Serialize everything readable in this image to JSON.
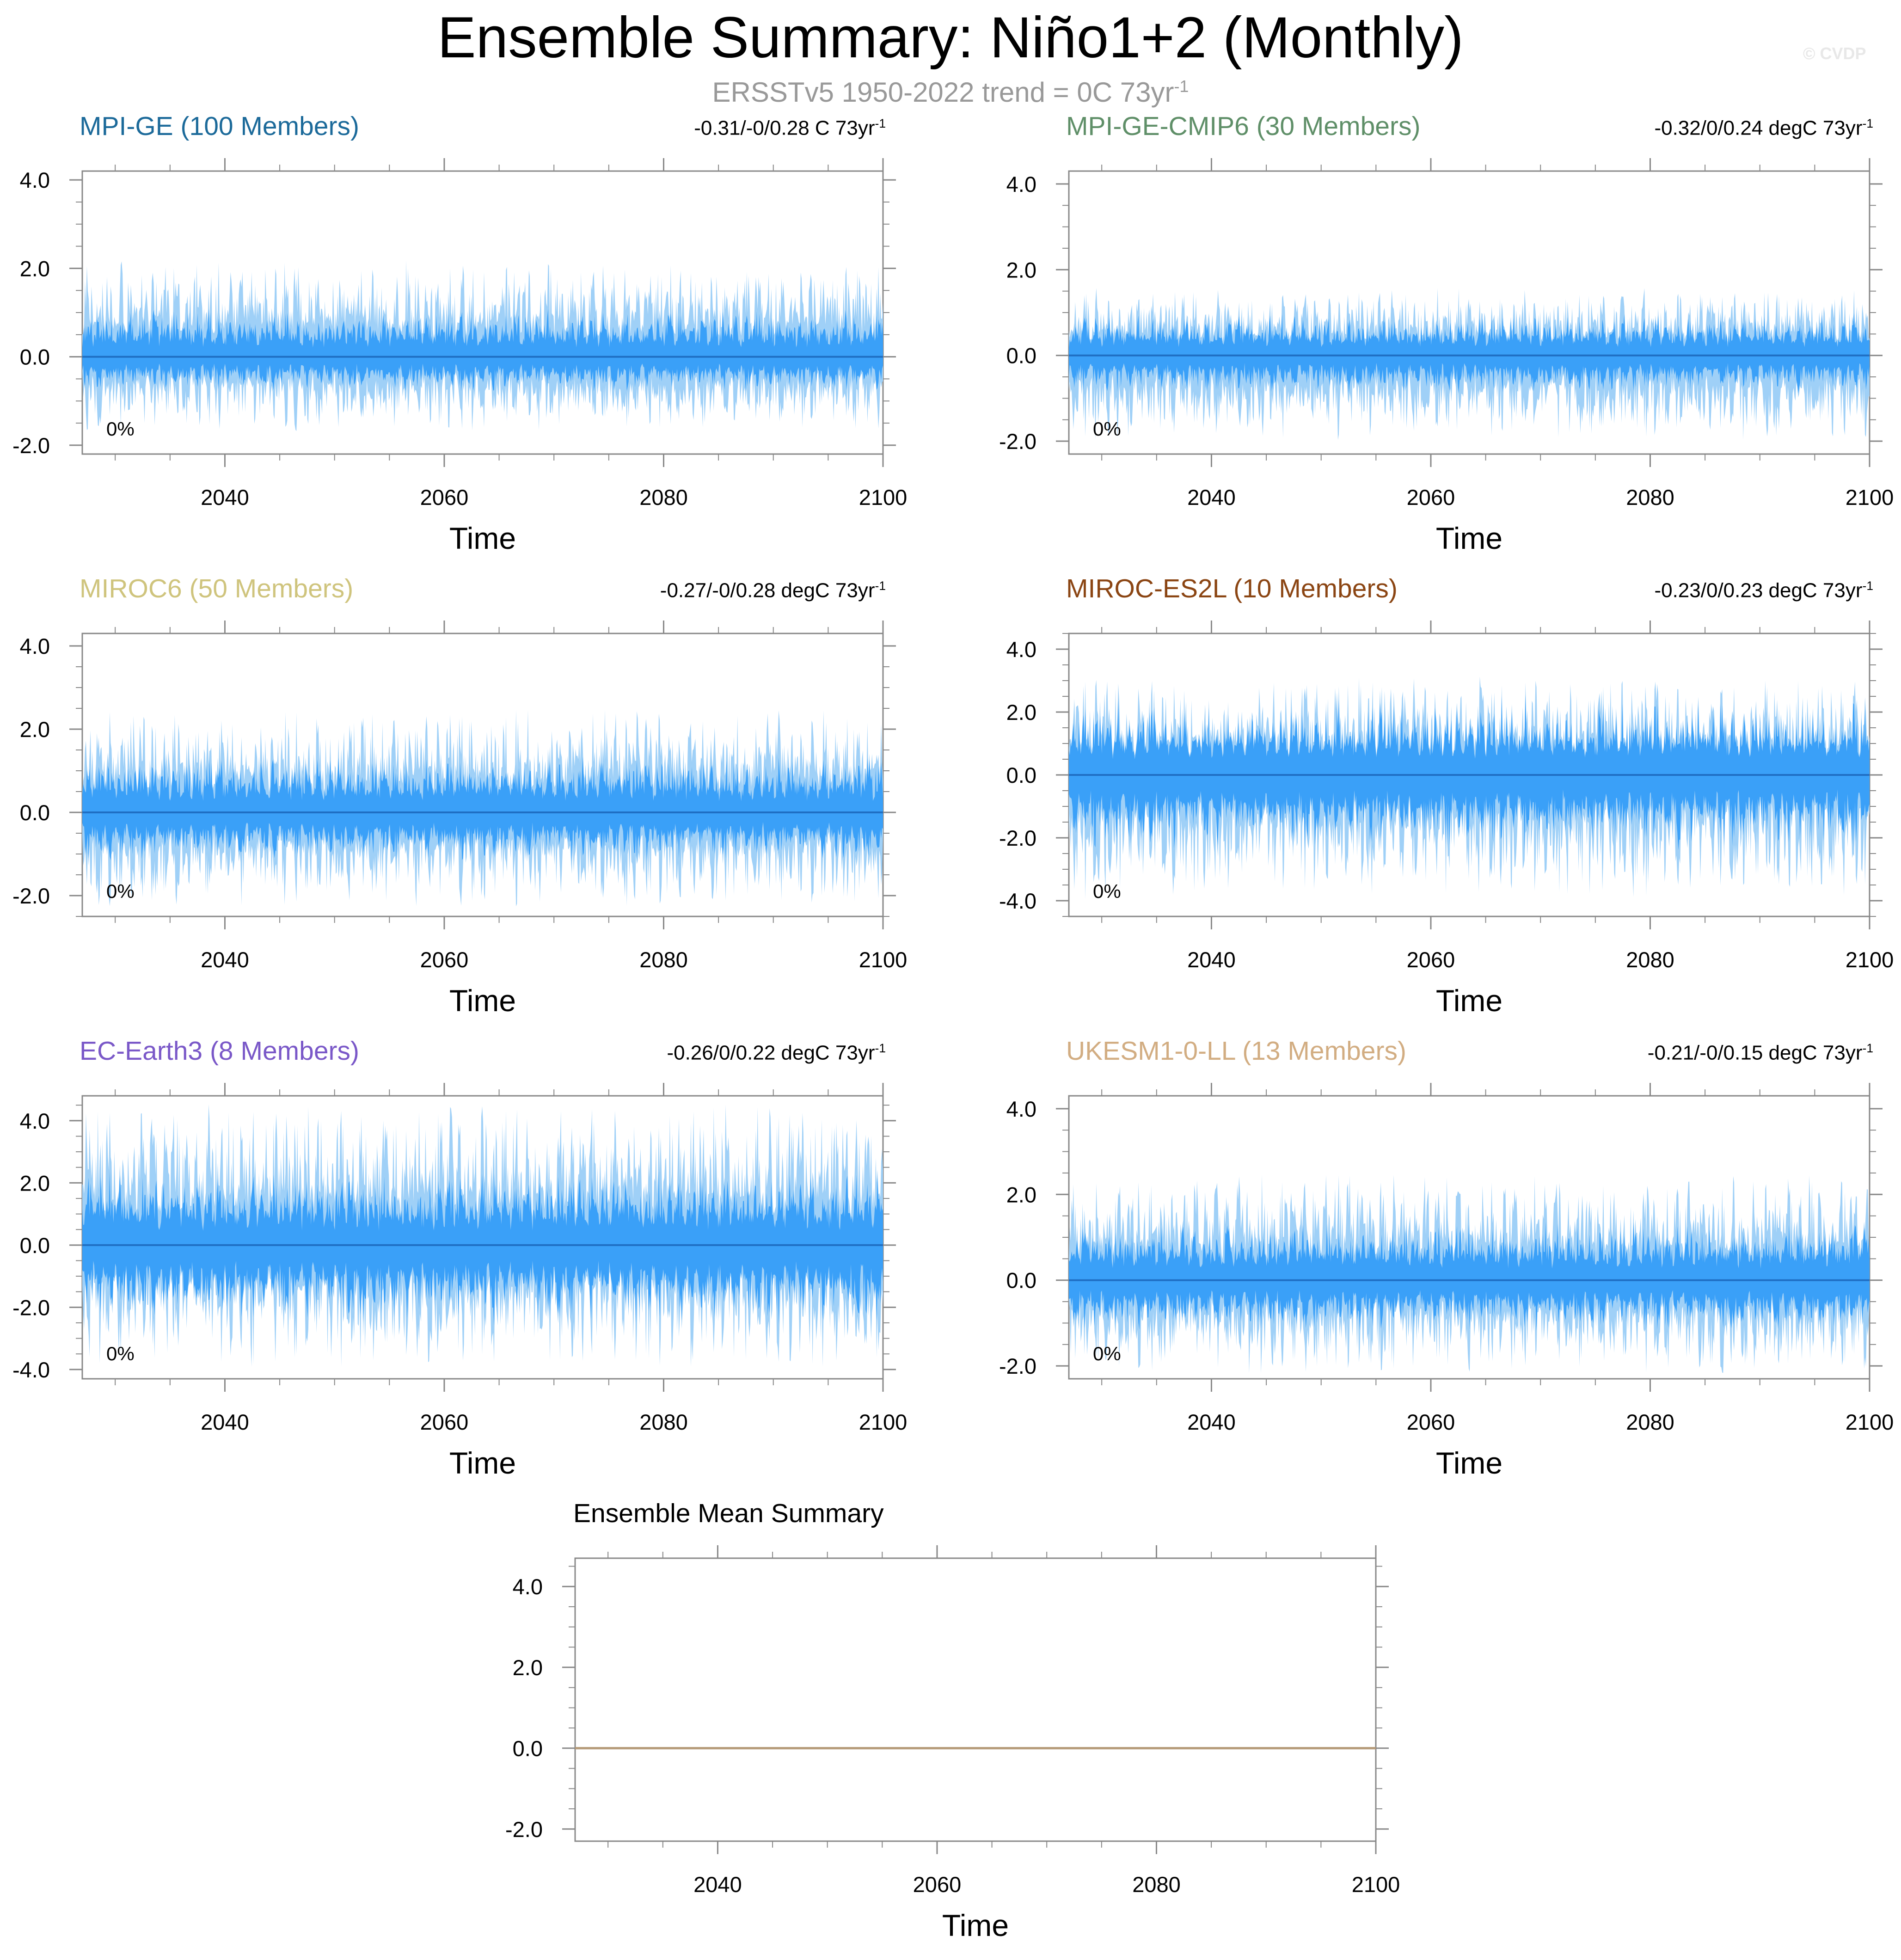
{
  "header": {
    "title": "Ensemble Summary: Niño1+2 (Monthly)",
    "subtitle": "ERSSTv5 1950-2022 trend = 0C 73yr",
    "subtitle_sup": "-1",
    "watermark": "© CVDP"
  },
  "colors": {
    "band_outer": "#9fd0f7",
    "band_inner": "#3aa0f8",
    "mean_line": "#1f6fc4",
    "summary_line": "#b59a78",
    "axis": "#888888"
  },
  "chart_data": [
    {
      "type": "area",
      "title": "MPI-GE (100 Members)",
      "title_color": "#1c6a9a",
      "trend": "-0.31/-0/0.28 C 73yr",
      "trend_sup": "-1",
      "percent": "0%",
      "xlabel": "Time",
      "xlim": [
        2027,
        2100
      ],
      "xticks": [
        2040,
        2060,
        2080,
        2100
      ],
      "ylim": [
        -2.2,
        4.2
      ],
      "yticks": [
        -2.0,
        0.0,
        2.0,
        4.0
      ],
      "ytick_labels": [
        "-2.0",
        "0.0",
        "2.0",
        "4.0"
      ],
      "outer_range": [
        -1.7,
        2.2
      ],
      "inner_range": [
        -0.8,
        1.1
      ],
      "mean": 0.0
    },
    {
      "type": "area",
      "title": "MPI-GE-CMIP6 (30 Members)",
      "title_color": "#5f8f68",
      "trend": "-0.32/0/0.24 degC 73yr",
      "trend_sup": "-1",
      "percent": "0%",
      "xlabel": "Time",
      "xlim": [
        2027,
        2100
      ],
      "xticks": [
        2040,
        2060,
        2080,
        2100
      ],
      "ylim": [
        -2.3,
        4.3
      ],
      "yticks": [
        -2.0,
        0.0,
        2.0,
        4.0
      ],
      "ytick_labels": [
        "-2.0",
        "0.0",
        "2.0",
        "4.0"
      ],
      "outer_range": [
        -2.0,
        1.6
      ],
      "inner_range": [
        -0.9,
        1.0
      ],
      "mean": 0.0
    },
    {
      "type": "area",
      "title": "MIROC6 (50 Members)",
      "title_color": "#cfc47d",
      "trend": "-0.27/-0/0.28 degC 73yr",
      "trend_sup": "-1",
      "percent": "0%",
      "xlabel": "Time",
      "xlim": [
        2027,
        2100
      ],
      "xticks": [
        2040,
        2060,
        2080,
        2100
      ],
      "ylim": [
        -2.5,
        4.3
      ],
      "yticks": [
        -2.0,
        0.0,
        2.0,
        4.0
      ],
      "ytick_labels": [
        "-2.0",
        "0.0",
        "2.0",
        "4.0"
      ],
      "outer_range": [
        -2.3,
        2.5
      ],
      "inner_range": [
        -1.2,
        1.4
      ],
      "mean": 0.0
    },
    {
      "type": "area",
      "title": "MIROC-ES2L (10 Members)",
      "title_color": "#8b4513",
      "trend": "-0.23/0/0.23 degC 73yr",
      "trend_sup": "-1",
      "percent": "0%",
      "xlabel": "Time",
      "xlim": [
        2027,
        2100
      ],
      "xticks": [
        2040,
        2060,
        2080,
        2100
      ],
      "ylim": [
        -4.5,
        4.5
      ],
      "yticks": [
        -4.0,
        -2.0,
        0.0,
        2.0,
        4.0
      ],
      "ytick_labels": [
        "-4.0",
        "-2.0",
        "0.0",
        "2.0",
        "4.0"
      ],
      "outer_range": [
        -4.0,
        3.2
      ],
      "inner_range": [
        -2.4,
        2.6
      ],
      "mean": 0.0
    },
    {
      "type": "area",
      "title": "EC-Earth3 (8 Members)",
      "title_color": "#7a58c8",
      "trend": "-0.26/0/0.22 degC 73yr",
      "trend_sup": "-1",
      "percent": "0%",
      "xlabel": "Time",
      "xlim": [
        2027,
        2100
      ],
      "xticks": [
        2040,
        2060,
        2080,
        2100
      ],
      "ylim": [
        -4.3,
        4.8
      ],
      "yticks": [
        -4.0,
        -2.0,
        0.0,
        2.0,
        4.0
      ],
      "ytick_labels": [
        "-4.0",
        "-2.0",
        "0.0",
        "2.0",
        "4.0"
      ],
      "outer_range": [
        -4.0,
        4.6
      ],
      "inner_range": [
        -2.6,
        2.4
      ],
      "mean": 0.0
    },
    {
      "type": "area",
      "title": "UKESM1-0-LL (13 Members)",
      "title_color": "#d2ad82",
      "trend": "-0.21/-0/0.15 degC 73yr",
      "trend_sup": "-1",
      "percent": "0%",
      "xlabel": "Time",
      "xlim": [
        2027,
        2100
      ],
      "xticks": [
        2040,
        2060,
        2080,
        2100
      ],
      "ylim": [
        -2.3,
        4.3
      ],
      "yticks": [
        -2.0,
        0.0,
        2.0,
        4.0
      ],
      "ytick_labels": [
        "-2.0",
        "0.0",
        "2.0",
        "4.0"
      ],
      "outer_range": [
        -2.2,
        2.5
      ],
      "inner_range": [
        -1.2,
        1.4
      ],
      "mean": 0.0
    },
    {
      "type": "line",
      "title": "Ensemble Mean Summary",
      "title_color": "#000000",
      "xlabel": "Time",
      "xlim": [
        2027,
        2100
      ],
      "xticks": [
        2040,
        2060,
        2080,
        2100
      ],
      "ylim": [
        -2.3,
        4.7
      ],
      "yticks": [
        -2.0,
        0.0,
        2.0,
        4.0
      ],
      "ytick_labels": [
        "-2.0",
        "0.0",
        "2.0",
        "4.0"
      ],
      "x": [
        2027,
        2100
      ],
      "y": [
        0.0,
        0.0
      ]
    }
  ]
}
